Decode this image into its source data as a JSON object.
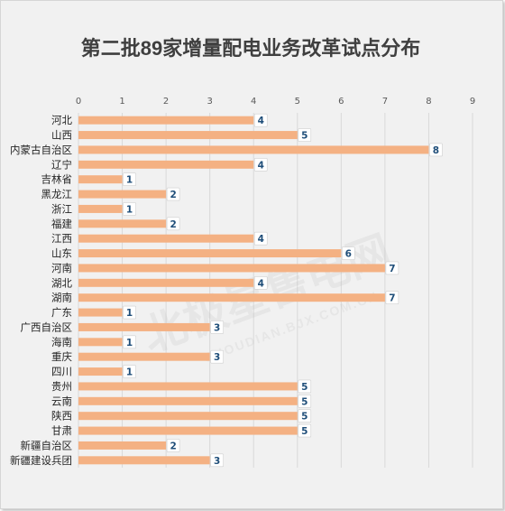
{
  "chart_data": {
    "type": "bar",
    "orientation": "horizontal",
    "title": "第二批89家增量配电业务改革试点分布",
    "xlabel": "",
    "ylabel": "",
    "xlim": [
      0,
      9
    ],
    "xticks": [
      0,
      1,
      2,
      3,
      4,
      5,
      6,
      7,
      8,
      9
    ],
    "grid": true,
    "legend": "none",
    "categories": [
      "河北",
      "山西",
      "内蒙古自治区",
      "辽宁",
      "吉林省",
      "黑龙江",
      "浙江",
      "福建",
      "江西",
      "山东",
      "河南",
      "湖北",
      "湖南",
      "广东",
      "广西自治区",
      "海南",
      "重庆",
      "四川",
      "贵州",
      "云南",
      "陕西",
      "甘肃",
      "新疆自治区",
      "新疆建设兵团"
    ],
    "values": [
      4,
      5,
      8,
      4,
      1,
      2,
      1,
      2,
      4,
      6,
      7,
      4,
      7,
      1,
      3,
      1,
      3,
      1,
      5,
      5,
      5,
      5,
      2,
      3
    ],
    "bar_color": "#f4b183",
    "label_color": "#1f4e79"
  },
  "watermark": {
    "main": "北极星售电网",
    "sub": "SHOUDIAN.BJX.COM.CN"
  }
}
